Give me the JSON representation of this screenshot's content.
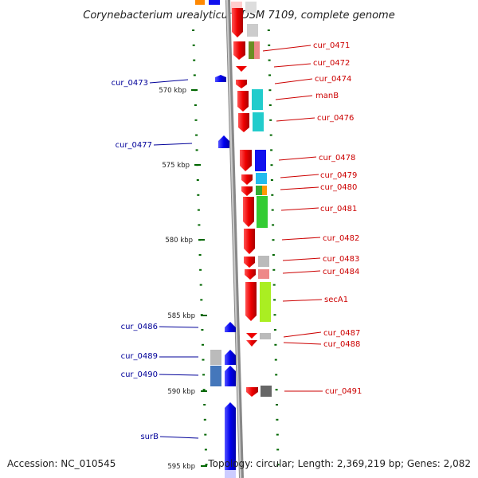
{
  "map": {
    "title": "Corynebacterium urealyticum DSM 7109, complete genome",
    "footer": {
      "accession": "Accession: NC_010545",
      "summary": "Topology: circular; Length: 2,369,219 bp; Genes: 2,082"
    },
    "colors": {
      "forward_arrow": "#ee1111",
      "reverse_arrow": "#1111ee",
      "right_label": "#cc0000",
      "left_label": "#000099",
      "tick": "#006600",
      "backbone": "#999999"
    },
    "kbp_ticks": [
      "570 kbp",
      "575 kbp",
      "580 kbp",
      "585 kbp",
      "590 kbp",
      "595 kbp"
    ],
    "genes_right": [
      "cur_0471",
      "cur_0472",
      "cur_0474",
      "manB",
      "cur_0476",
      "cur_0478",
      "cur_0479",
      "cur_0480",
      "cur_0481",
      "cur_0482",
      "cur_0483",
      "cur_0484",
      "secA1",
      "cur_0487",
      "cur_0488",
      "cur_0491"
    ],
    "genes_left": [
      "cur_0473",
      "cur_0477",
      "cur_0486",
      "cur_0489",
      "cur_0490",
      "surB"
    ]
  }
}
